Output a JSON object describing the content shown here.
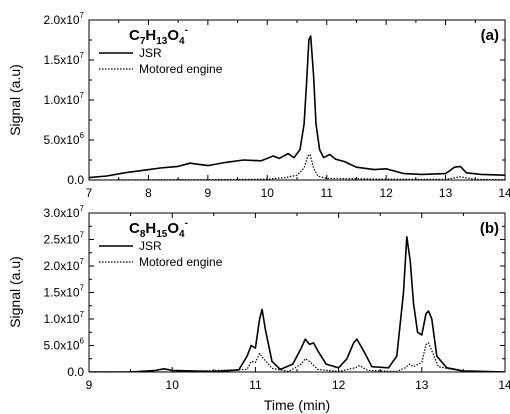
{
  "chart_data": [
    {
      "type": "line",
      "panel_label": "(a)",
      "title_parts": [
        [
          "C",
          "base"
        ],
        [
          "7",
          "sub"
        ],
        [
          "H",
          "base"
        ],
        [
          "13",
          "sub"
        ],
        [
          "O",
          "base"
        ],
        [
          "4",
          "sub"
        ],
        [
          "-",
          "sup"
        ]
      ],
      "xlim": [
        7,
        14
      ],
      "xticks": [
        7,
        8,
        9,
        10,
        11,
        12,
        13,
        14
      ],
      "ylim": [
        0,
        20000000
      ],
      "yticks": [
        {
          "value": 0,
          "mantissa": "0.0",
          "exp": ""
        },
        {
          "value": 5000000,
          "mantissa": "5.0x10",
          "exp": "6"
        },
        {
          "value": 10000000,
          "mantissa": "1.0x10",
          "exp": "7"
        },
        {
          "value": 15000000,
          "mantissa": "1.5x10",
          "exp": "7"
        },
        {
          "value": 20000000,
          "mantissa": "2.0x10",
          "exp": "7"
        }
      ],
      "ylabel": "Signal (a.u)",
      "xlabel": "",
      "legend_position": "top-left",
      "series": [
        {
          "name": "JSR",
          "style": "solid",
          "x": [
            7.0,
            7.3,
            7.6,
            7.9,
            8.2,
            8.5,
            8.7,
            9.0,
            9.3,
            9.6,
            9.9,
            10.1,
            10.2,
            10.35,
            10.45,
            10.55,
            10.62,
            10.66,
            10.7,
            10.73,
            10.78,
            10.82,
            10.88,
            10.95,
            11.05,
            11.15,
            11.3,
            11.5,
            11.8,
            12.0,
            12.3,
            12.6,
            13.0,
            13.15,
            13.25,
            13.35,
            13.6,
            14.0
          ],
          "values": [
            300000,
            500000,
            900000,
            1200000,
            1500000,
            1700000,
            2100000,
            1800000,
            2200000,
            2500000,
            2400000,
            3000000,
            2700000,
            3300000,
            2800000,
            3800000,
            7000000,
            12000000,
            17500000,
            18000000,
            13000000,
            7000000,
            3800000,
            2800000,
            3200000,
            2600000,
            2300000,
            1600000,
            1300000,
            1400000,
            800000,
            700000,
            800000,
            1600000,
            1700000,
            900000,
            700000,
            600000
          ]
        },
        {
          "name": "Motored engine",
          "style": "dotted",
          "x": [
            7.0,
            8.0,
            9.0,
            10.0,
            10.3,
            10.5,
            10.62,
            10.68,
            10.72,
            10.78,
            10.85,
            11.0,
            12.0,
            13.0,
            13.25,
            13.5,
            14.0
          ],
          "values": [
            0,
            20000,
            40000,
            100000,
            300000,
            600000,
            1500000,
            3000000,
            3200000,
            1500000,
            500000,
            200000,
            100000,
            80000,
            400000,
            80000,
            50000
          ]
        }
      ]
    },
    {
      "type": "line",
      "panel_label": "(b)",
      "title_parts": [
        [
          "C",
          "base"
        ],
        [
          "8",
          "sub"
        ],
        [
          "H",
          "base"
        ],
        [
          "15",
          "sub"
        ],
        [
          "O",
          "base"
        ],
        [
          "4",
          "sub"
        ],
        [
          "-",
          "sup"
        ]
      ],
      "xlim": [
        9,
        14
      ],
      "xticks": [
        9,
        10,
        11,
        12,
        13,
        14
      ],
      "ylim": [
        0,
        30000000
      ],
      "yticks": [
        {
          "value": 0,
          "mantissa": "0.0",
          "exp": ""
        },
        {
          "value": 5000000,
          "mantissa": "5.0x10",
          "exp": "6"
        },
        {
          "value": 10000000,
          "mantissa": "1.0x10",
          "exp": "7"
        },
        {
          "value": 15000000,
          "mantissa": "1.5x10",
          "exp": "7"
        },
        {
          "value": 20000000,
          "mantissa": "2.0x10",
          "exp": "7"
        },
        {
          "value": 25000000,
          "mantissa": "2.5x10",
          "exp": "7"
        },
        {
          "value": 30000000,
          "mantissa": "3.0x10",
          "exp": "7"
        }
      ],
      "ylabel": "Signal (a.u)",
      "xlabel": "Time (min)",
      "legend_position": "top-left",
      "series": [
        {
          "name": "JSR",
          "style": "solid",
          "x": [
            9.0,
            9.5,
            9.8,
            9.9,
            10.0,
            10.5,
            10.8,
            10.9,
            10.95,
            11.0,
            11.05,
            11.08,
            11.12,
            11.2,
            11.3,
            11.45,
            11.55,
            11.6,
            11.65,
            11.7,
            11.75,
            11.85,
            12.0,
            12.1,
            12.18,
            12.22,
            12.3,
            12.4,
            12.6,
            12.7,
            12.78,
            12.82,
            12.86,
            12.9,
            12.95,
            13.0,
            13.05,
            13.08,
            13.12,
            13.18,
            13.3,
            13.5,
            13.8,
            14.0
          ],
          "values": [
            0,
            0,
            300000,
            600000,
            300000,
            100000,
            400000,
            3000000,
            5000000,
            4500000,
            10000000,
            11800000,
            8000000,
            2000000,
            500000,
            1500000,
            4500000,
            6200000,
            5200000,
            5500000,
            4000000,
            1500000,
            800000,
            2500000,
            5500000,
            6200000,
            4000000,
            1000000,
            800000,
            3000000,
            15000000,
            25500000,
            21000000,
            13000000,
            7500000,
            7000000,
            11000000,
            11500000,
            10000000,
            3000000,
            800000,
            200000,
            100000,
            0
          ]
        },
        {
          "name": "Motored engine",
          "style": "dotted",
          "x": [
            9.0,
            10.0,
            10.9,
            10.95,
            11.0,
            11.05,
            11.1,
            11.2,
            11.4,
            11.55,
            11.6,
            11.65,
            11.75,
            12.0,
            12.2,
            12.25,
            12.35,
            12.7,
            12.8,
            12.85,
            12.9,
            13.0,
            13.05,
            13.08,
            13.12,
            13.2,
            13.5,
            14.0
          ],
          "values": [
            0,
            0,
            500000,
            2000000,
            1800000,
            3500000,
            2500000,
            700000,
            100000,
            1500000,
            2500000,
            2000000,
            500000,
            100000,
            800000,
            1200000,
            300000,
            100000,
            800000,
            1500000,
            1000000,
            1800000,
            5200000,
            5500000,
            4000000,
            1000000,
            100000,
            0
          ]
        }
      ]
    }
  ]
}
